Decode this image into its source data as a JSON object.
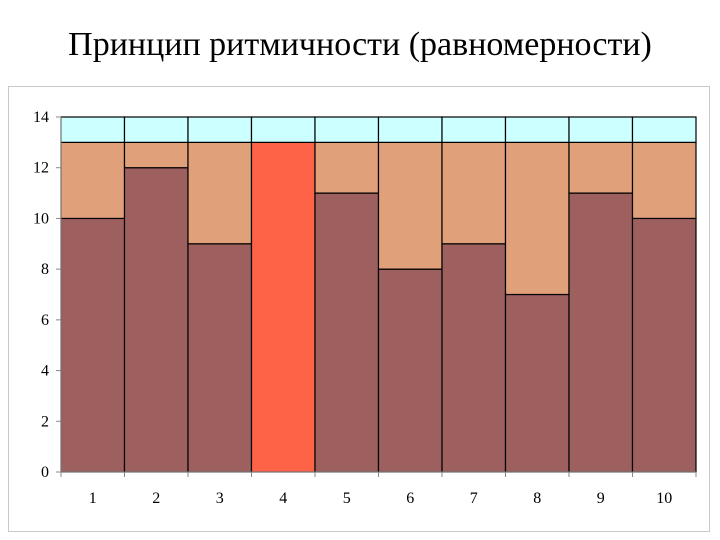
{
  "title": "Принцип ритмичности (равномерности)",
  "chart_data": {
    "type": "bar",
    "stacked": true,
    "categories": [
      "1",
      "2",
      "3",
      "4",
      "5",
      "6",
      "7",
      "8",
      "9",
      "10"
    ],
    "series": [
      {
        "values": [
          10,
          12,
          9,
          13,
          11,
          8,
          9,
          7,
          11,
          10
        ],
        "color": "#9e5f5f",
        "highlight_index": 3,
        "highlight_color": "#ff6347"
      },
      {
        "values": [
          3,
          1,
          4,
          0,
          2,
          5,
          4,
          6,
          2,
          3
        ],
        "color": "#e0a07a"
      },
      {
        "values": [
          1,
          1,
          1,
          1,
          1,
          1,
          1,
          1,
          1,
          1
        ],
        "color": "#ccffff"
      }
    ],
    "yticks": [
      "0",
      "2",
      "4",
      "6",
      "8",
      "10",
      "12",
      "14"
    ],
    "ylim": [
      0,
      14
    ],
    "grid": false,
    "legend": "none"
  }
}
